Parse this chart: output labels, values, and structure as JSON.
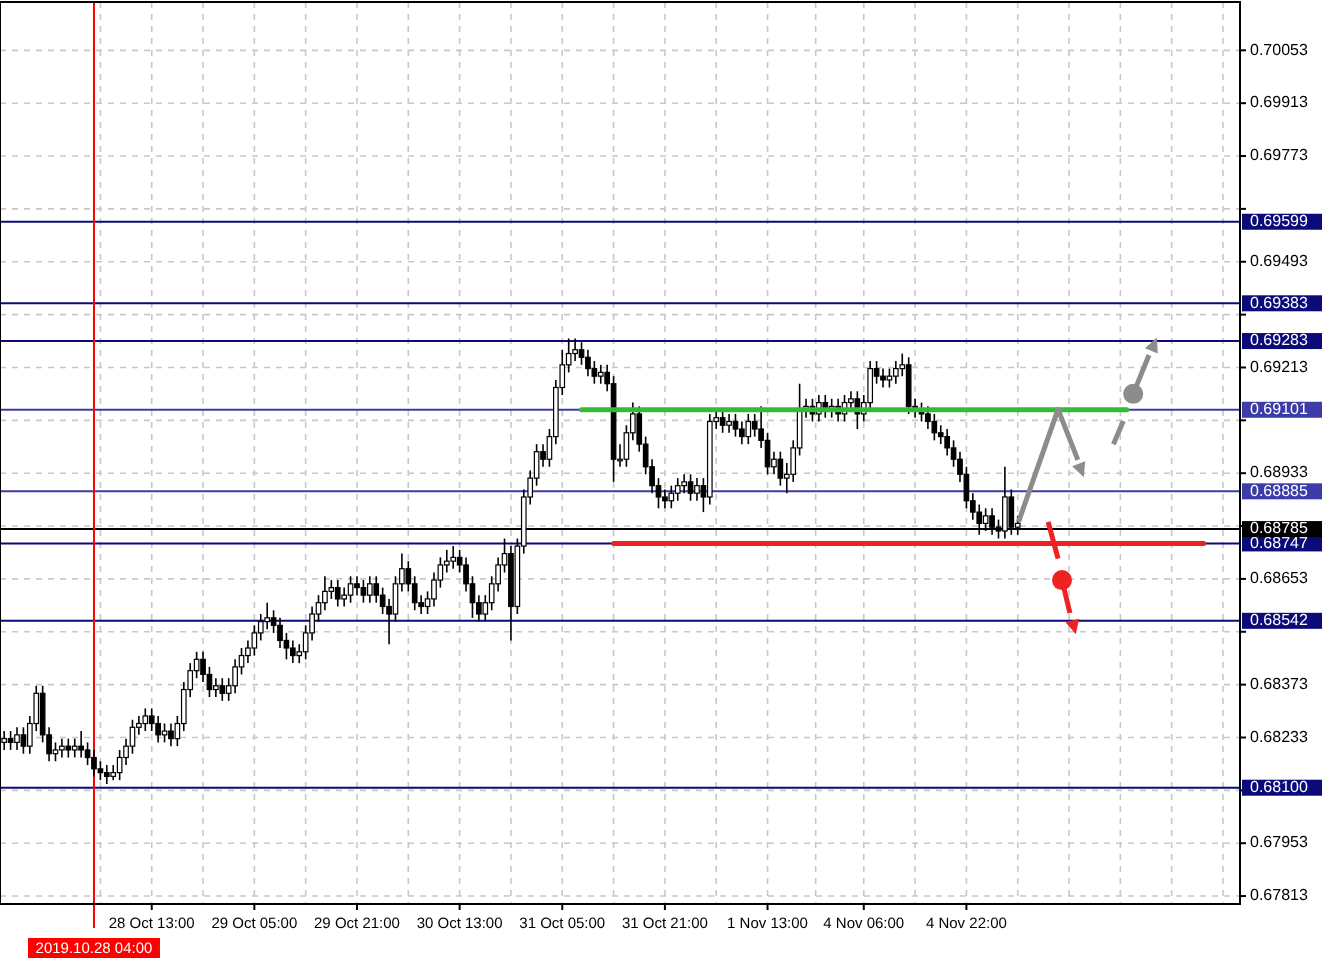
{
  "chart_data": {
    "type": "candlestick",
    "categories": [
      null,
      null,
      null,
      null,
      null,
      null,
      null,
      null,
      null,
      null,
      null,
      null,
      null,
      null,
      "2019.10.28 04:00",
      null,
      null,
      null,
      null,
      null,
      null,
      null,
      null,
      "28 Oct 13:00",
      null,
      null,
      null,
      null,
      null,
      null,
      null,
      null,
      null,
      null,
      null,
      null,
      null,
      null,
      null,
      "29 Oct 05:00",
      null,
      null,
      null,
      null,
      null,
      null,
      null,
      null,
      null,
      null,
      null,
      null,
      null,
      null,
      null,
      "29 Oct 21:00",
      null,
      null,
      null,
      null,
      null,
      null,
      null,
      null,
      null,
      null,
      null,
      null,
      null,
      null,
      null,
      "30 Oct 13:00",
      null,
      null,
      null,
      null,
      null,
      null,
      null,
      null,
      null,
      null,
      null,
      null,
      null,
      null,
      null,
      "31 Oct 05:00",
      null,
      null,
      null,
      null,
      null,
      null,
      null,
      null,
      null,
      null,
      null,
      null,
      null,
      null,
      null,
      "31 Oct 21:00",
      null,
      null,
      null,
      null,
      null,
      null,
      null,
      null,
      null,
      null,
      null,
      null,
      null,
      null,
      null,
      "1 Nov 13:00",
      null,
      null,
      null,
      null,
      null,
      null,
      null,
      null,
      null,
      null,
      null,
      null,
      null,
      null,
      "4 Nov 06:00",
      null,
      null,
      null,
      null,
      null,
      null,
      null,
      null,
      null,
      null,
      null,
      null,
      null,
      null,
      null,
      "4 Nov 22:00",
      null,
      null,
      null,
      null,
      null,
      null,
      null,
      null,
      null,
      null,
      null,
      null,
      null,
      null,
      null,
      null,
      null,
      null,
      null,
      null,
      null,
      null,
      null,
      null,
      null,
      null,
      null,
      null,
      null,
      null,
      null,
      null,
      null,
      null,
      null,
      null,
      null,
      null,
      null,
      null,
      null,
      null
    ],
    "ohlc": [
      [
        0.6822,
        0.6825,
        0.682,
        0.6823
      ],
      [
        0.6823,
        0.6825,
        0.682,
        0.6822
      ],
      [
        0.6822,
        0.6826,
        0.682,
        0.6824
      ],
      [
        0.6824,
        0.6826,
        0.6819,
        0.6821
      ],
      [
        0.6821,
        0.6829,
        0.6819,
        0.6827
      ],
      [
        0.6827,
        0.6837,
        0.6825,
        0.6835
      ],
      [
        0.6835,
        0.6837,
        0.6822,
        0.6824
      ],
      [
        0.6824,
        0.6826,
        0.6817,
        0.6819
      ],
      [
        0.6819,
        0.6822,
        0.6817,
        0.682
      ],
      [
        0.682,
        0.6823,
        0.6818,
        0.6821
      ],
      [
        0.6821,
        0.6823,
        0.6818,
        0.682
      ],
      [
        0.682,
        0.6823,
        0.6818,
        0.6821
      ],
      [
        0.6821,
        0.6825,
        0.6818,
        0.682
      ],
      [
        0.682,
        0.6822,
        0.6816,
        0.6818
      ],
      [
        0.6818,
        0.682,
        0.6813,
        0.6815
      ],
      [
        0.6815,
        0.6817,
        0.6812,
        0.6814
      ],
      [
        0.6814,
        0.6816,
        0.6811,
        0.6813
      ],
      [
        0.6813,
        0.6816,
        0.6812,
        0.6814
      ],
      [
        0.6814,
        0.682,
        0.6812,
        0.6818
      ],
      [
        0.6818,
        0.6823,
        0.6816,
        0.6821
      ],
      [
        0.6821,
        0.6828,
        0.6819,
        0.6826
      ],
      [
        0.6826,
        0.6829,
        0.6824,
        0.6827
      ],
      [
        0.6827,
        0.6831,
        0.6825,
        0.6829
      ],
      [
        0.6829,
        0.6831,
        0.6825,
        0.6827
      ],
      [
        0.6827,
        0.6829,
        0.6822,
        0.6824
      ],
      [
        0.6824,
        0.6827,
        0.6822,
        0.6825
      ],
      [
        0.6825,
        0.6827,
        0.6821,
        0.6823
      ],
      [
        0.6823,
        0.6829,
        0.6821,
        0.6827
      ],
      [
        0.6827,
        0.6838,
        0.6825,
        0.6836
      ],
      [
        0.6836,
        0.6843,
        0.6834,
        0.6841
      ],
      [
        0.6841,
        0.6846,
        0.6839,
        0.6844
      ],
      [
        0.6844,
        0.6846,
        0.6838,
        0.684
      ],
      [
        0.684,
        0.6842,
        0.6834,
        0.6836
      ],
      [
        0.6836,
        0.6839,
        0.6834,
        0.6837
      ],
      [
        0.6837,
        0.6839,
        0.6833,
        0.6835
      ],
      [
        0.6835,
        0.6839,
        0.6833,
        0.6837
      ],
      [
        0.6837,
        0.6844,
        0.6835,
        0.6842
      ],
      [
        0.6842,
        0.6847,
        0.684,
        0.6845
      ],
      [
        0.6845,
        0.6849,
        0.6843,
        0.6847
      ],
      [
        0.6847,
        0.6853,
        0.6845,
        0.6851
      ],
      [
        0.6851,
        0.6856,
        0.6849,
        0.6854
      ],
      [
        0.6854,
        0.6859,
        0.6852,
        0.6855
      ],
      [
        0.6855,
        0.6857,
        0.6851,
        0.6853
      ],
      [
        0.6853,
        0.6855,
        0.6847,
        0.6849
      ],
      [
        0.6849,
        0.6851,
        0.6844,
        0.6847
      ],
      [
        0.6847,
        0.6849,
        0.6843,
        0.6845
      ],
      [
        0.6845,
        0.6848,
        0.6843,
        0.6846
      ],
      [
        0.6846,
        0.6853,
        0.6844,
        0.6851
      ],
      [
        0.6851,
        0.6858,
        0.6849,
        0.6856
      ],
      [
        0.6856,
        0.6861,
        0.6854,
        0.6859
      ],
      [
        0.6859,
        0.6866,
        0.6857,
        0.6862
      ],
      [
        0.6862,
        0.6865,
        0.686,
        0.6863
      ],
      [
        0.6863,
        0.6865,
        0.6858,
        0.686
      ],
      [
        0.686,
        0.6863,
        0.6858,
        0.6861
      ],
      [
        0.6861,
        0.6866,
        0.6859,
        0.6864
      ],
      [
        0.6864,
        0.6866,
        0.6861,
        0.6863
      ],
      [
        0.6863,
        0.6865,
        0.6859,
        0.6861
      ],
      [
        0.6861,
        0.6866,
        0.6859,
        0.6864
      ],
      [
        0.6864,
        0.6866,
        0.6859,
        0.6861
      ],
      [
        0.6861,
        0.6863,
        0.6856,
        0.6858
      ],
      [
        0.6858,
        0.686,
        0.6848,
        0.6856
      ],
      [
        0.6856,
        0.6866,
        0.6854,
        0.6864
      ],
      [
        0.6864,
        0.6872,
        0.6862,
        0.6868
      ],
      [
        0.6868,
        0.687,
        0.6862,
        0.6864
      ],
      [
        0.6864,
        0.6866,
        0.6857,
        0.6859
      ],
      [
        0.6859,
        0.6861,
        0.6856,
        0.6858
      ],
      [
        0.6858,
        0.6862,
        0.6856,
        0.686
      ],
      [
        0.686,
        0.6867,
        0.6858,
        0.6865
      ],
      [
        0.6865,
        0.6871,
        0.6863,
        0.6869
      ],
      [
        0.6869,
        0.6873,
        0.6867,
        0.687
      ],
      [
        0.687,
        0.6874,
        0.6868,
        0.6871
      ],
      [
        0.6871,
        0.6873,
        0.6867,
        0.6869
      ],
      [
        0.6869,
        0.6871,
        0.6862,
        0.6864
      ],
      [
        0.6864,
        0.6866,
        0.6855,
        0.6859
      ],
      [
        0.6859,
        0.6861,
        0.6854,
        0.6856
      ],
      [
        0.6856,
        0.6861,
        0.6854,
        0.6859
      ],
      [
        0.6859,
        0.6866,
        0.6857,
        0.6864
      ],
      [
        0.6864,
        0.6871,
        0.6862,
        0.6869
      ],
      [
        0.6869,
        0.6876,
        0.6867,
        0.6872
      ],
      [
        0.6872,
        0.6874,
        0.6849,
        0.6858
      ],
      [
        0.6858,
        0.6876,
        0.6856,
        0.6874
      ],
      [
        0.6874,
        0.6889,
        0.6872,
        0.6887
      ],
      [
        0.6887,
        0.6894,
        0.6885,
        0.6892
      ],
      [
        0.6892,
        0.6901,
        0.689,
        0.6899
      ],
      [
        0.6899,
        0.6901,
        0.6895,
        0.6897
      ],
      [
        0.6897,
        0.6905,
        0.6895,
        0.6903
      ],
      [
        0.6903,
        0.6918,
        0.6901,
        0.6916
      ],
      [
        0.6916,
        0.6926,
        0.6914,
        0.6922
      ],
      [
        0.6922,
        0.6929,
        0.692,
        0.6925
      ],
      [
        0.6925,
        0.6929,
        0.6923,
        0.6926
      ],
      [
        0.6926,
        0.6928,
        0.6922,
        0.6924
      ],
      [
        0.6924,
        0.6926,
        0.6919,
        0.6921
      ],
      [
        0.6921,
        0.6923,
        0.6917,
        0.6919
      ],
      [
        0.6919,
        0.6922,
        0.6917,
        0.692
      ],
      [
        0.692,
        0.6922,
        0.6915,
        0.6917
      ],
      [
        0.6917,
        0.6919,
        0.6891,
        0.6897
      ],
      [
        0.6897,
        0.6901,
        0.6895,
        0.6897
      ],
      [
        0.6897,
        0.6906,
        0.6895,
        0.6904
      ],
      [
        0.6904,
        0.6912,
        0.6902,
        0.6909
      ],
      [
        0.6909,
        0.6911,
        0.6899,
        0.6901
      ],
      [
        0.6901,
        0.6903,
        0.6893,
        0.6895
      ],
      [
        0.6895,
        0.6897,
        0.6888,
        0.689
      ],
      [
        0.689,
        0.6892,
        0.6884,
        0.6887
      ],
      [
        0.6887,
        0.6889,
        0.6884,
        0.6886
      ],
      [
        0.6886,
        0.689,
        0.6884,
        0.6888
      ],
      [
        0.6888,
        0.6892,
        0.6886,
        0.689
      ],
      [
        0.689,
        0.6893,
        0.6888,
        0.6891
      ],
      [
        0.6891,
        0.6893,
        0.6886,
        0.6888
      ],
      [
        0.6888,
        0.6892,
        0.6886,
        0.689
      ],
      [
        0.689,
        0.6892,
        0.6883,
        0.6887
      ],
      [
        0.6887,
        0.6909,
        0.6885,
        0.6907
      ],
      [
        0.6907,
        0.691,
        0.6905,
        0.6908
      ],
      [
        0.6908,
        0.691,
        0.6904,
        0.6906
      ],
      [
        0.6906,
        0.6909,
        0.6904,
        0.6907
      ],
      [
        0.6907,
        0.6909,
        0.6903,
        0.6905
      ],
      [
        0.6905,
        0.6907,
        0.6901,
        0.6903
      ],
      [
        0.6903,
        0.6909,
        0.6901,
        0.6907
      ],
      [
        0.6907,
        0.6909,
        0.6903,
        0.6905
      ],
      [
        0.6905,
        0.6911,
        0.69,
        0.6902
      ],
      [
        0.6902,
        0.6904,
        0.6893,
        0.6895
      ],
      [
        0.6895,
        0.6899,
        0.6893,
        0.6897
      ],
      [
        0.6897,
        0.6899,
        0.689,
        0.6892
      ],
      [
        0.6892,
        0.6896,
        0.6888,
        0.6893
      ],
      [
        0.6893,
        0.6902,
        0.6891,
        0.69
      ],
      [
        0.69,
        0.6917,
        0.6898,
        0.691
      ],
      [
        0.691,
        0.6913,
        0.6908,
        0.6911
      ],
      [
        0.6911,
        0.6913,
        0.6907,
        0.6909
      ],
      [
        0.6909,
        0.6914,
        0.6907,
        0.6912
      ],
      [
        0.6912,
        0.6914,
        0.6908,
        0.691
      ],
      [
        0.691,
        0.6913,
        0.6908,
        0.6911
      ],
      [
        0.6911,
        0.6913,
        0.6907,
        0.6909
      ],
      [
        0.6909,
        0.6914,
        0.6907,
        0.6912
      ],
      [
        0.6912,
        0.6915,
        0.691,
        0.6913
      ],
      [
        0.6913,
        0.6915,
        0.6905,
        0.6909
      ],
      [
        0.6909,
        0.6914,
        0.6907,
        0.6912
      ],
      [
        0.6912,
        0.6923,
        0.691,
        0.6921
      ],
      [
        0.6921,
        0.6923,
        0.6917,
        0.6919
      ],
      [
        0.6919,
        0.6921,
        0.6916,
        0.6918
      ],
      [
        0.6918,
        0.6921,
        0.6916,
        0.6919
      ],
      [
        0.6919,
        0.6923,
        0.6917,
        0.6921
      ],
      [
        0.6921,
        0.6925,
        0.6919,
        0.6922
      ],
      [
        0.6922,
        0.6924,
        0.6909,
        0.6911
      ],
      [
        0.6911,
        0.6913,
        0.6908,
        0.691
      ],
      [
        0.691,
        0.6912,
        0.6907,
        0.6909
      ],
      [
        0.6909,
        0.6911,
        0.6905,
        0.6907
      ],
      [
        0.6907,
        0.6909,
        0.6902,
        0.6904
      ],
      [
        0.6904,
        0.6906,
        0.6901,
        0.6903
      ],
      [
        0.6903,
        0.6905,
        0.6898,
        0.69
      ],
      [
        0.69,
        0.6902,
        0.6895,
        0.6897
      ],
      [
        0.6897,
        0.6899,
        0.6891,
        0.6893
      ],
      [
        0.6893,
        0.6895,
        0.6884,
        0.6886
      ],
      [
        0.6886,
        0.6888,
        0.6881,
        0.6883
      ],
      [
        0.6883,
        0.6885,
        0.6877,
        0.688
      ],
      [
        0.688,
        0.6884,
        0.6878,
        0.6882
      ],
      [
        0.6882,
        0.6884,
        0.6877,
        0.6879
      ],
      [
        0.6879,
        0.6881,
        0.6876,
        0.6878
      ],
      [
        0.6878,
        0.6895,
        0.6876,
        0.6887
      ],
      [
        0.6887,
        0.6889,
        0.6877,
        0.6879
      ],
      [
        0.6879,
        0.6882,
        0.6877,
        0.688
      ],
      null,
      null,
      null,
      null,
      null,
      null,
      null,
      null,
      null,
      null,
      null,
      null,
      null,
      null,
      null,
      null,
      null,
      null,
      null,
      null,
      null,
      null,
      null,
      null,
      null,
      null,
      null,
      null,
      null,
      null,
      null,
      null,
      null,
      null
    ],
    "series": [
      {
        "type": "line",
        "color": "#33bb33",
        "values": [
          null,
          null,
          null,
          null,
          null,
          null,
          null,
          null,
          null,
          null,
          null,
          null,
          null,
          null,
          null,
          null,
          null,
          null,
          null,
          null,
          null,
          null,
          null,
          null,
          null,
          null,
          null,
          null,
          null,
          null,
          null,
          null,
          null,
          null,
          null,
          null,
          null,
          null,
          null,
          null,
          null,
          null,
          null,
          null,
          null,
          null,
          null,
          null,
          null,
          null,
          null,
          null,
          null,
          null,
          null,
          null,
          null,
          null,
          null,
          null,
          null,
          null,
          null,
          null,
          null,
          null,
          null,
          null,
          null,
          null,
          null,
          null,
          null,
          null,
          null,
          null,
          null,
          null,
          null,
          null,
          null,
          null,
          null,
          null,
          null,
          null,
          null,
          null,
          null,
          null,
          0.69101,
          0.69101,
          0.69101,
          0.69101,
          0.69101,
          0.69101,
          0.69101,
          0.69101,
          0.69101,
          0.69101,
          0.69101,
          0.69101,
          0.69101,
          0.69101,
          0.69101,
          0.69101,
          0.69101,
          0.69101,
          0.69101,
          0.69101,
          0.69101,
          0.69101,
          0.69101,
          0.69101,
          0.69101,
          0.69101,
          0.69101,
          0.69101,
          0.69101,
          0.69101,
          0.69101,
          0.69101,
          0.69101,
          0.69101,
          0.69101,
          0.69101,
          0.69101,
          0.69101,
          0.69101,
          0.69101,
          0.69101,
          0.69101,
          0.69101,
          0.69101,
          0.69101,
          0.69101,
          0.69101,
          0.69101,
          0.69101,
          0.69101,
          0.69101,
          0.69101,
          0.69101,
          0.69101,
          0.69101,
          0.69101,
          0.69101,
          0.69101,
          0.69101,
          0.69101,
          0.69101,
          0.69101,
          0.69101,
          0.69101,
          0.69101,
          0.69101,
          0.69101,
          0.69101,
          0.69101,
          0.69101,
          0.69101,
          0.69101,
          0.69101,
          0.69101,
          0.69101,
          0.69101,
          0.69101,
          0.69101,
          0.69101,
          0.69101,
          0.69101,
          0.69101,
          0.69101,
          0.69101,
          0.69101,
          0.69101,
          null,
          null,
          null,
          null,
          null,
          null,
          null,
          null,
          null,
          null,
          null,
          null,
          null,
          null,
          null,
          null,
          null
        ]
      },
      {
        "type": "line",
        "color": "#ee2222",
        "values": [
          null,
          null,
          null,
          null,
          null,
          null,
          null,
          null,
          null,
          null,
          null,
          null,
          null,
          null,
          null,
          null,
          null,
          null,
          null,
          null,
          null,
          null,
          null,
          null,
          null,
          null,
          null,
          null,
          null,
          null,
          null,
          null,
          null,
          null,
          null,
          null,
          null,
          null,
          null,
          null,
          null,
          null,
          null,
          null,
          null,
          null,
          null,
          null,
          null,
          null,
          null,
          null,
          null,
          null,
          null,
          null,
          null,
          null,
          null,
          null,
          null,
          null,
          null,
          null,
          null,
          null,
          null,
          null,
          null,
          null,
          null,
          null,
          null,
          null,
          null,
          null,
          null,
          null,
          null,
          null,
          null,
          null,
          null,
          null,
          null,
          null,
          null,
          null,
          null,
          null,
          null,
          null,
          null,
          null,
          null,
          0.68747,
          0.68747,
          0.68747,
          0.68747,
          0.68747,
          0.68747,
          0.68747,
          0.68747,
          0.68747,
          0.68747,
          0.68747,
          0.68747,
          0.68747,
          0.68747,
          0.68747,
          0.68747,
          0.68747,
          0.68747,
          0.68747,
          0.68747,
          0.68747,
          0.68747,
          0.68747,
          0.68747,
          0.68747,
          0.68747,
          0.68747,
          0.68747,
          0.68747,
          0.68747,
          0.68747,
          0.68747,
          0.68747,
          0.68747,
          0.68747,
          0.68747,
          0.68747,
          0.68747,
          0.68747,
          0.68747,
          0.68747,
          0.68747,
          0.68747,
          0.68747,
          0.68747,
          0.68747,
          0.68747,
          0.68747,
          0.68747,
          0.68747,
          0.68747,
          0.68747,
          0.68747,
          0.68747,
          0.68747,
          0.68747,
          0.68747,
          0.68747,
          0.68747,
          0.68747,
          0.68747,
          0.68747,
          0.68747,
          0.68747,
          0.68747,
          0.68747,
          0.68747,
          0.68747,
          0.68747,
          0.68747,
          0.68747,
          0.68747,
          0.68747,
          0.68747,
          0.68747,
          0.68747,
          0.68747,
          0.68747,
          0.68747,
          0.68747,
          0.68747,
          0.68747,
          0.68747,
          0.68747,
          0.68747,
          0.68747,
          0.68747,
          0.68747,
          0.68747,
          0.68747,
          0.68747,
          0.68747,
          0.68747,
          null,
          null,
          null,
          null,
          null
        ]
      }
    ],
    "ylim": [
      0.67792,
      0.70181
    ],
    "yticks": [
      0.67813,
      0.67953,
      {
        "value": 0.68093,
        "label": null
      },
      0.68233,
      0.68373,
      {
        "value": 0.68513,
        "label": null
      },
      0.68653,
      {
        "value": 0.68793,
        "label": null
      },
      0.68933,
      {
        "value": 0.69073,
        "label": null
      },
      0.69213,
      {
        "value": 0.69353,
        "label": null
      },
      0.69493,
      {
        "value": 0.69633,
        "label": null
      },
      0.69773,
      0.69913,
      0.70053
    ],
    "ref_lines": [
      {
        "axis": "y",
        "value": 0.69599,
        "label": "0.69599",
        "color": "#0a0a78"
      },
      {
        "axis": "y",
        "value": 0.69383,
        "label": "0.69383",
        "color": "#0a0a78"
      },
      {
        "axis": "y",
        "value": 0.69283,
        "label": "0.69283",
        "color": "#0a0a78"
      },
      {
        "axis": "y",
        "value": 0.69101,
        "label": "0.69101",
        "color": "#3c3ca8"
      },
      {
        "axis": "y",
        "value": 0.68885,
        "label": "0.68885",
        "color": "#3c3ca8"
      },
      {
        "axis": "y",
        "value": 0.68747,
        "label": "0.68747",
        "color": "#0a0a78"
      },
      {
        "axis": "y",
        "value": 0.68542,
        "label": "0.68542",
        "color": "#0a0a78"
      },
      {
        "axis": "y",
        "value": 0.681,
        "label": "0.68100",
        "color": "#0a0a78"
      },
      {
        "axis": "y",
        "value": 0.68785,
        "label": "0.68785",
        "color": "#000000"
      },
      {
        "axis": "x",
        "value": "2019.10.28 04:00",
        "color": "#ff0000"
      }
    ],
    "grid": true
  }
}
